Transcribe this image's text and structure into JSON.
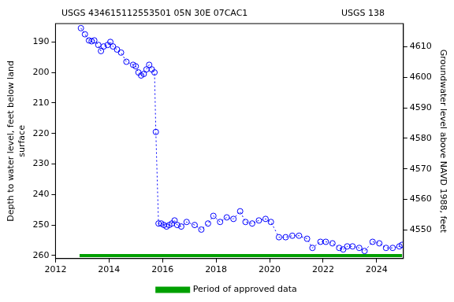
{
  "chart_data": {
    "type": "scatter",
    "title": "USGS 434615112553501 05N 30E 07CAC1",
    "annotations": [
      "USGS 138"
    ],
    "y_label": [
      "Depth to water level, feet below land",
      "surface"
    ],
    "y2_label": "Groundwater level above NAVD 1988, feet",
    "xlim": [
      2012,
      2025
    ],
    "xticks": [
      2012,
      2014,
      2016,
      2018,
      2020,
      2022,
      2024
    ],
    "ylim": [
      261,
      184
    ],
    "yticks": [
      190,
      200,
      210,
      220,
      230,
      240,
      250,
      260
    ],
    "y2lim": [
      4540.6,
      4617.6
    ],
    "y2ticks": [
      4550,
      4560,
      4570,
      4580,
      4590,
      4600,
      4610
    ],
    "grid": false,
    "legend": "bottom",
    "series": [
      {
        "color": "#0000ff",
        "marker": "circle",
        "line_style": "dotted",
        "x": [
          2012.95,
          2013.1,
          2013.25,
          2013.35,
          2013.45,
          2013.6,
          2013.7,
          2013.8,
          2013.95,
          2014.05,
          2014.15,
          2014.3,
          2014.45,
          2014.65,
          2014.9,
          2015.0,
          2015.1,
          2015.2,
          2015.3,
          2015.4,
          2015.5,
          2015.6,
          2015.7,
          2015.75,
          2015.85,
          2015.95,
          2016.05,
          2016.15,
          2016.25,
          2016.35,
          2016.45,
          2016.55,
          2016.7,
          2016.9,
          2017.2,
          2017.45,
          2017.7,
          2017.9,
          2018.15,
          2018.4,
          2018.65,
          2018.9,
          2019.1,
          2019.35,
          2019.6,
          2019.85,
          2020.05,
          2020.35,
          2020.6,
          2020.85,
          2021.1,
          2021.4,
          2021.6,
          2021.9,
          2022.1,
          2022.35,
          2022.6,
          2022.75,
          2022.9,
          2023.1,
          2023.35,
          2023.55,
          2023.85,
          2024.1,
          2024.35,
          2024.6,
          2024.85,
          2024.95
        ],
        "values": [
          185.5,
          187.5,
          189.5,
          189.8,
          189.5,
          191,
          193,
          191.5,
          191,
          190,
          191.5,
          192.5,
          193.5,
          196.5,
          197.5,
          198,
          200,
          201,
          200.5,
          199,
          197.5,
          199,
          200,
          219.5,
          249.5,
          249.5,
          250,
          250.5,
          250,
          249.5,
          248.5,
          250,
          250.5,
          249,
          250,
          251.5,
          249.5,
          247,
          249,
          247.5,
          248,
          245.5,
          249,
          249.5,
          248.5,
          248,
          249,
          254,
          254,
          253.5,
          253.5,
          254.5,
          257.5,
          255.5,
          255.5,
          256,
          257.5,
          258,
          257,
          257,
          257.5,
          258.5,
          255.5,
          256,
          257.5,
          257.5,
          257,
          256.5
        ]
      },
      {
        "name": "Period of approved data",
        "type": "line",
        "color": "#00a000",
        "marker": "none",
        "line_style": "solid",
        "x": [
          2012.9,
          2024.95
        ],
        "values": [
          260,
          260
        ]
      }
    ]
  }
}
